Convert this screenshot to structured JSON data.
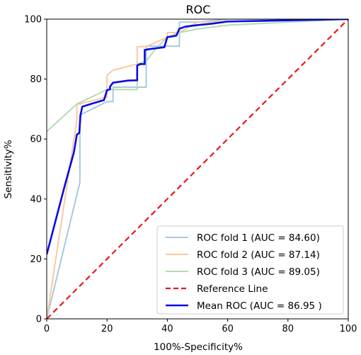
{
  "chart_data": {
    "type": "line",
    "title": "ROC",
    "xlabel": "100%-Specificity%",
    "ylabel": "Sensitivity%",
    "xlim": [
      0,
      100
    ],
    "ylim": [
      0,
      100
    ],
    "xticks": [
      0,
      20,
      40,
      60,
      80,
      100
    ],
    "yticks": [
      0,
      20,
      40,
      60,
      80,
      100
    ],
    "grid": false,
    "legend_position": "lower-right",
    "series": [
      {
        "name": "ROC fold 1 (AUC = 84.60)",
        "color": "#a9c8e2",
        "style": "solid",
        "points": [
          [
            0,
            0
          ],
          [
            11,
            45.5
          ],
          [
            11,
            68
          ],
          [
            20,
            72.5
          ],
          [
            22,
            72.5
          ],
          [
            22,
            77.3
          ],
          [
            33,
            77.3
          ],
          [
            33,
            91
          ],
          [
            38,
            91
          ],
          [
            40,
            91
          ],
          [
            44,
            91
          ],
          [
            44,
            99
          ],
          [
            50,
            99
          ],
          [
            60,
            100
          ],
          [
            100,
            100
          ]
        ]
      },
      {
        "name": "ROC fold 2 (AUC = 87.14)",
        "color": "#f9c9a0",
        "style": "solid",
        "points": [
          [
            0,
            0
          ],
          [
            10,
            66.5
          ],
          [
            10,
            71.5
          ],
          [
            20,
            74
          ],
          [
            20,
            81.3
          ],
          [
            22,
            83
          ],
          [
            30,
            85
          ],
          [
            30,
            90.8
          ],
          [
            33,
            90.8
          ],
          [
            40,
            94
          ],
          [
            40,
            95.5
          ],
          [
            44,
            95.5
          ],
          [
            50,
            99
          ],
          [
            100,
            100
          ]
        ]
      },
      {
        "name": "ROC fold 3 (AUC = 89.05)",
        "color": "#b3dcb1",
        "style": "solid",
        "points": [
          [
            0,
            62.5
          ],
          [
            10,
            71.7
          ],
          [
            20,
            76.5
          ],
          [
            30,
            76.5
          ],
          [
            30,
            85
          ],
          [
            33,
            86
          ],
          [
            36,
            90
          ],
          [
            40,
            94
          ],
          [
            44,
            95.5
          ],
          [
            50,
            96.7
          ],
          [
            60,
            98
          ],
          [
            80,
            99
          ],
          [
            100,
            100
          ]
        ]
      },
      {
        "name": "Reference Line",
        "color": "#e8191a",
        "style": "dashed",
        "points": [
          [
            0,
            0
          ],
          [
            100,
            100
          ]
        ]
      },
      {
        "name": "Mean ROC (AUC = 86.95 )",
        "color": "#0a0ae6",
        "style": "solid",
        "points": [
          [
            0,
            21.5
          ],
          [
            3,
            33
          ],
          [
            6,
            44.5
          ],
          [
            9,
            55.5
          ],
          [
            10,
            61.5
          ],
          [
            10.8,
            62
          ],
          [
            11.2,
            68
          ],
          [
            11.8,
            70.8
          ],
          [
            15,
            71.8
          ],
          [
            19,
            73
          ],
          [
            20,
            76.3
          ],
          [
            21,
            76.6
          ],
          [
            21,
            77.5
          ],
          [
            22,
            78.8
          ],
          [
            27,
            79.5
          ],
          [
            30,
            79.6
          ],
          [
            30,
            84.5
          ],
          [
            31,
            85
          ],
          [
            32.5,
            85
          ],
          [
            32.5,
            89.7
          ],
          [
            34,
            90
          ],
          [
            38,
            90.5
          ],
          [
            39,
            90.6
          ],
          [
            40,
            94
          ],
          [
            42,
            94.3
          ],
          [
            43,
            94.5
          ],
          [
            44,
            96.8
          ],
          [
            46,
            97.5
          ],
          [
            50,
            98
          ],
          [
            55,
            98.5
          ],
          [
            60,
            99.2
          ],
          [
            70,
            99.4
          ],
          [
            80,
            99.6
          ],
          [
            90,
            99.8
          ],
          [
            100,
            100
          ]
        ]
      }
    ]
  }
}
